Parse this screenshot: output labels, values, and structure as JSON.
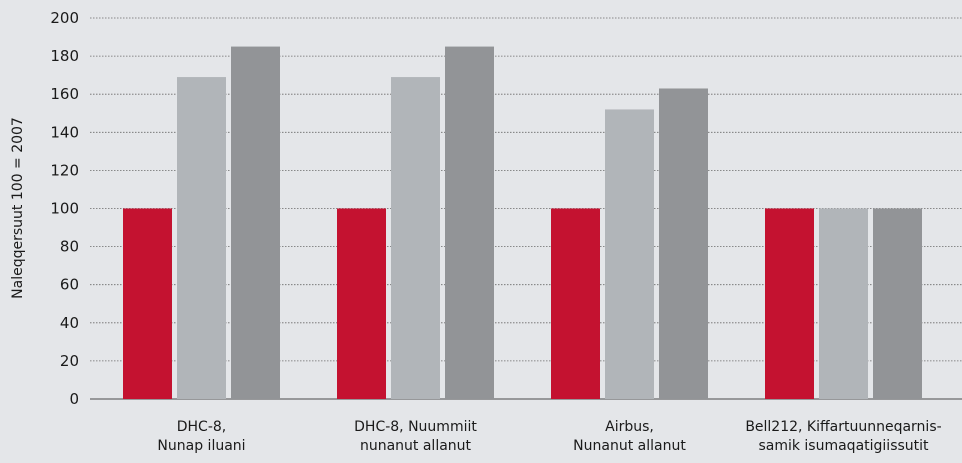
{
  "chart_data": {
    "type": "bar",
    "ylabel": "Naleqqersuut 100 = 2007",
    "ylim": [
      0,
      200
    ],
    "yticks": [
      0,
      20,
      40,
      60,
      80,
      100,
      120,
      140,
      160,
      180,
      200
    ],
    "grid": true,
    "categories": [
      [
        "DHC-8,",
        "Nunap iluani"
      ],
      [
        "DHC-8, Nuummiit",
        "nunanut allanut"
      ],
      [
        "Airbus,",
        "Nunanut allanut"
      ],
      [
        "Bell212, Kiffartuunneqarnis-",
        "samik isumaqatigiissutit"
      ]
    ],
    "series": [
      {
        "values": [
          100,
          100,
          100,
          100
        ],
        "color": "#c41230"
      },
      {
        "values": [
          169,
          169,
          152,
          100
        ],
        "color": "#b1b5b9"
      },
      {
        "values": [
          185,
          185,
          163,
          100
        ],
        "color": "#929497"
      }
    ]
  }
}
